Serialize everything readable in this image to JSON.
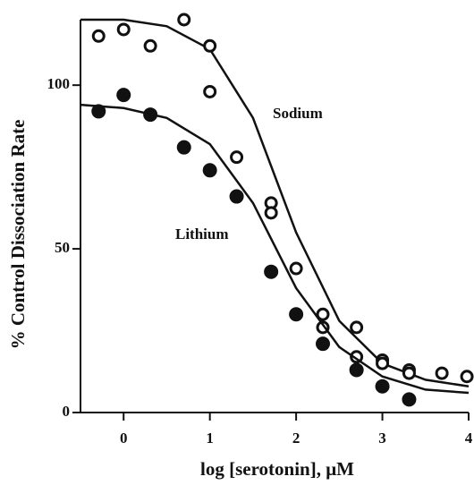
{
  "chart_data": {
    "type": "scatter",
    "x_label": "log [serotonin], μM",
    "y_label": "% Control Dissociation Rate",
    "xlim": [
      -0.5,
      4
    ],
    "ylim": [
      0,
      120
    ],
    "xticks": [
      0,
      1,
      2,
      3,
      4
    ],
    "yticks": [
      0,
      50,
      100
    ],
    "series": [
      {
        "name": "Sodium",
        "color": "#111111",
        "marker": "open",
        "x": [
          -0.29,
          0,
          0.31,
          0.7,
          1.0,
          1.0,
          1.31,
          1.71,
          1.71,
          2.0,
          2.31,
          2.31,
          2.7,
          2.7,
          3.0,
          3.0,
          3.31,
          3.31,
          3.69,
          3.98
        ],
        "values": [
          115,
          117,
          112,
          120,
          112,
          98,
          78,
          64,
          61,
          44,
          30,
          26,
          26,
          17,
          16,
          15,
          13,
          12,
          12,
          11
        ],
        "fit": {
          "x": [
            -0.5,
            0,
            0.5,
            1,
            1.5,
            2,
            2.5,
            3,
            3.5,
            4
          ],
          "values": [
            120,
            120,
            118,
            111,
            90,
            55,
            28,
            15,
            10,
            8
          ]
        }
      },
      {
        "name": "Lithium",
        "color": "#111111",
        "marker": "filled",
        "x": [
          -0.29,
          0,
          0.31,
          0.7,
          1.0,
          1.31,
          1.71,
          2.0,
          2.31,
          2.7,
          3.0,
          3.31
        ],
        "values": [
          92,
          97,
          91,
          81,
          74,
          66,
          43,
          30,
          21,
          13,
          8,
          4
        ],
        "fit": {
          "x": [
            -0.5,
            0,
            0.5,
            1,
            1.5,
            2,
            2.5,
            3,
            3.5,
            4
          ],
          "values": [
            94,
            93,
            90,
            82,
            64,
            38,
            20,
            11,
            7,
            6
          ]
        }
      }
    ]
  }
}
